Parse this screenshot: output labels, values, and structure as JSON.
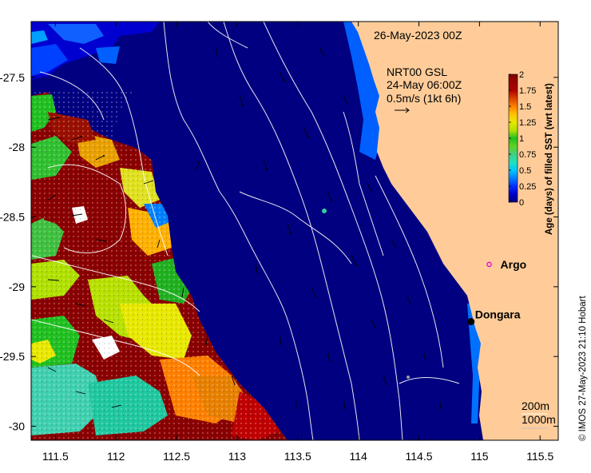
{
  "timestamp": "26-May-2023 00Z",
  "current_legend": {
    "product": "NRT00 GSL",
    "time": "24-May 06:00Z",
    "scale": "0.5m/s (1kt 6h)"
  },
  "colorbar": {
    "title": "Age (days) of filled SST (wrt latest)",
    "ticks": [
      "2",
      "1.75",
      "1.5",
      "1.25",
      "1",
      "0.75",
      "0.5",
      "0.25",
      "0"
    ],
    "colors": [
      "#00007f",
      "#0000c8",
      "#0030ff",
      "#0080ff",
      "#00c8ff",
      "#20e0c0",
      "#40d080",
      "#60d020",
      "#20c020",
      "#b0e000",
      "#e8e800",
      "#ffc000",
      "#ff8000",
      "#e04000",
      "#b00000",
      "#800000"
    ]
  },
  "axes": {
    "x_ticks": [
      "111.5",
      "112",
      "112.5",
      "113",
      "113.5",
      "114",
      "114.5",
      "115",
      "115.5"
    ],
    "y_ticks": [
      "-27.5",
      "-28",
      "-28.5",
      "-29",
      "-29.5",
      "-30"
    ],
    "xlim": [
      111.3,
      115.65
    ],
    "ylim": [
      -30.1,
      -27.1
    ]
  },
  "places": [
    {
      "name": "Argo",
      "lon": 115.08,
      "lat": -28.84,
      "marker": "ring",
      "color": "#e000e0"
    },
    {
      "name": "Dongara",
      "lon": 114.93,
      "lat": -29.25,
      "marker": "dot",
      "color": "#000000"
    }
  ],
  "isobaths": {
    "shallow": "200m",
    "deep": "1000m"
  },
  "credit": "© IMOS 27-May-2023 21:10 Hobart",
  "colors": {
    "ocean": "#000080",
    "land": "#ffcc99",
    "coast_shallow": "#0070ff"
  }
}
